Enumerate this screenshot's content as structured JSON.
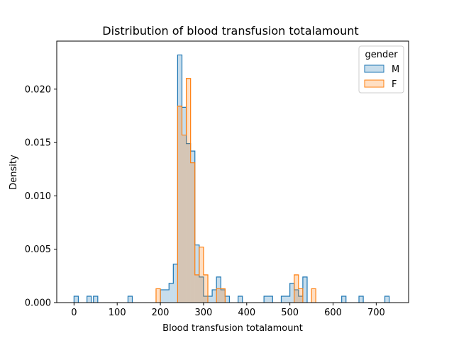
{
  "chart_data": {
    "type": "histogram",
    "title": "Distribution of blood transfusion totalamount",
    "xlabel": "Blood transfusion totalamount",
    "ylabel": "Density",
    "xlim": [
      -40,
      775
    ],
    "ylim": [
      0,
      0.0245
    ],
    "x_ticks": [
      0,
      100,
      200,
      300,
      400,
      500,
      600,
      700
    ],
    "x_tick_labels": [
      "0",
      "100",
      "200",
      "300",
      "400",
      "500",
      "600",
      "700"
    ],
    "y_ticks": [
      0.0,
      0.005,
      0.01,
      0.015,
      0.02
    ],
    "y_tick_labels": [
      "0.000",
      "0.005",
      "0.010",
      "0.015",
      "0.020"
    ],
    "bin_width": 10,
    "legend": {
      "title": "gender",
      "placement": "top-right"
    },
    "series": [
      {
        "name": "M",
        "color": "#1f77b4",
        "bins": [
          [
            0,
            0.0006
          ],
          [
            30,
            0.0006
          ],
          [
            45,
            0.0006
          ],
          [
            125,
            0.0006
          ],
          [
            200,
            0.0012
          ],
          [
            210,
            0.0012
          ],
          [
            220,
            0.0018
          ],
          [
            230,
            0.0036
          ],
          [
            240,
            0.0232
          ],
          [
            250,
            0.0183
          ],
          [
            260,
            0.0149
          ],
          [
            270,
            0.0142
          ],
          [
            280,
            0.0054
          ],
          [
            290,
            0.0024
          ],
          [
            300,
            0.0006
          ],
          [
            310,
            0.0006
          ],
          [
            320,
            0.0012
          ],
          [
            330,
            0.0024
          ],
          [
            340,
            0.0012
          ],
          [
            350,
            0.0006
          ],
          [
            380,
            0.0006
          ],
          [
            440,
            0.0006
          ],
          [
            450,
            0.0006
          ],
          [
            480,
            0.0006
          ],
          [
            490,
            0.0006
          ],
          [
            500,
            0.0018
          ],
          [
            510,
            0.0012
          ],
          [
            520,
            0.0006
          ],
          [
            530,
            0.0024
          ],
          [
            620,
            0.0006
          ],
          [
            660,
            0.0006
          ],
          [
            720,
            0.0006
          ]
        ]
      },
      {
        "name": "F",
        "color": "#ff7f0e",
        "bins": [
          [
            190,
            0.0013
          ],
          [
            240,
            0.0184
          ],
          [
            250,
            0.0157
          ],
          [
            260,
            0.021
          ],
          [
            270,
            0.0131
          ],
          [
            280,
            0.0026
          ],
          [
            290,
            0.0052
          ],
          [
            300,
            0.0026
          ],
          [
            330,
            0.0013
          ],
          [
            340,
            0.0013
          ],
          [
            510,
            0.0026
          ],
          [
            520,
            0.0013
          ],
          [
            550,
            0.0013
          ]
        ]
      }
    ]
  }
}
